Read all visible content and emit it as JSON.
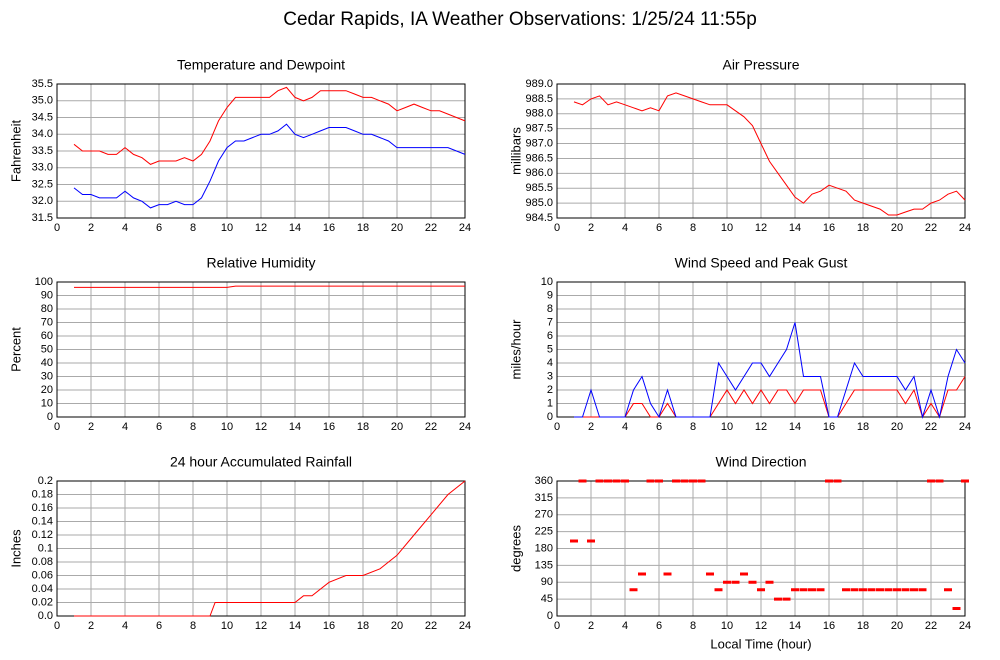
{
  "title": "Cedar Rapids, IA Weather Observations: 1/25/24 11:55p",
  "chart_data": [
    {
      "type": "line",
      "title": "Temperature and Dewpoint",
      "ylabel": "Fahrenheit",
      "x": [
        1,
        1.5,
        2,
        2.5,
        3,
        3.5,
        4,
        4.5,
        5,
        5.5,
        6,
        6.5,
        7,
        7.5,
        8,
        8.5,
        9,
        9.5,
        10,
        10.5,
        11,
        11.5,
        12,
        12.5,
        13,
        13.5,
        14,
        14.5,
        15,
        15.5,
        16,
        16.5,
        17,
        17.5,
        18,
        18.5,
        19,
        19.5,
        20,
        20.5,
        21,
        21.5,
        22,
        22.5,
        23,
        23.5,
        24
      ],
      "series": [
        {
          "name": "Temperature",
          "color": "#ff0000",
          "values": [
            33.7,
            33.5,
            33.5,
            33.5,
            33.4,
            33.4,
            33.6,
            33.4,
            33.3,
            33.1,
            33.2,
            33.2,
            33.2,
            33.3,
            33.2,
            33.4,
            33.8,
            34.4,
            34.8,
            35.1,
            35.1,
            35.1,
            35.1,
            35.1,
            35.3,
            35.4,
            35.1,
            35.0,
            35.1,
            35.3,
            35.3,
            35.3,
            35.3,
            35.2,
            35.1,
            35.1,
            35.0,
            34.9,
            34.7,
            34.8,
            34.9,
            34.8,
            34.7,
            34.7,
            34.6,
            34.5,
            34.4
          ]
        },
        {
          "name": "Dewpoint",
          "color": "#0000ff",
          "values": [
            32.4,
            32.2,
            32.2,
            32.1,
            32.1,
            32.1,
            32.3,
            32.1,
            32.0,
            31.8,
            31.9,
            31.9,
            32.0,
            31.9,
            31.9,
            32.1,
            32.6,
            33.2,
            33.6,
            33.8,
            33.8,
            33.9,
            34.0,
            34.0,
            34.1,
            34.3,
            34.0,
            33.9,
            34.0,
            34.1,
            34.2,
            34.2,
            34.2,
            34.1,
            34.0,
            34.0,
            33.9,
            33.8,
            33.6,
            33.6,
            33.6,
            33.6,
            33.6,
            33.6,
            33.6,
            33.5,
            33.4
          ]
        }
      ],
      "xlim": [
        0,
        24
      ],
      "xticks": [
        0,
        2,
        4,
        6,
        8,
        10,
        12,
        14,
        16,
        18,
        20,
        22,
        24
      ],
      "ylim": [
        31.5,
        35.5
      ],
      "yticks": [
        31.5,
        {
          "value": 32,
          "label": "32.0"
        },
        32.5,
        {
          "value": 33,
          "label": "33.0"
        },
        33.5,
        {
          "value": 34,
          "label": "34.0"
        },
        34.5,
        {
          "value": 35,
          "label": "35.0"
        },
        35.5
      ],
      "grid": true
    },
    {
      "type": "line",
      "title": "Air Pressure",
      "ylabel": "millibars",
      "x": [
        1,
        1.5,
        2,
        2.5,
        3,
        3.5,
        4,
        4.5,
        5,
        5.5,
        6,
        6.5,
        7,
        7.5,
        8,
        8.5,
        9,
        9.5,
        10,
        10.5,
        11,
        11.5,
        12,
        12.5,
        13,
        13.5,
        14,
        14.5,
        15,
        15.5,
        16,
        16.5,
        17,
        17.5,
        18,
        18.5,
        19,
        19.5,
        20,
        20.5,
        21,
        21.5,
        22,
        22.5,
        23,
        23.5,
        24
      ],
      "series": [
        {
          "name": "Pressure",
          "color": "#ff0000",
          "values": [
            988.4,
            988.3,
            988.5,
            988.6,
            988.3,
            988.4,
            988.3,
            988.2,
            988.1,
            988.2,
            988.1,
            988.6,
            988.7,
            988.6,
            988.5,
            988.4,
            988.3,
            988.3,
            988.3,
            988.1,
            987.9,
            987.6,
            987.0,
            986.4,
            986.0,
            985.6,
            985.2,
            985.0,
            985.3,
            985.4,
            985.6,
            985.5,
            985.4,
            985.1,
            985.0,
            984.9,
            984.8,
            984.6,
            984.6,
            984.7,
            984.8,
            984.8,
            985.0,
            985.1,
            985.3,
            985.4,
            985.1
          ]
        }
      ],
      "xlim": [
        0,
        24
      ],
      "xticks": [
        0,
        2,
        4,
        6,
        8,
        10,
        12,
        14,
        16,
        18,
        20,
        22,
        24
      ],
      "ylim": [
        984.5,
        989
      ],
      "yticks": [
        984.5,
        {
          "value": 985,
          "label": "985.0"
        },
        985.5,
        {
          "value": 986,
          "label": "986.0"
        },
        986.5,
        {
          "value": 987,
          "label": "987.0"
        },
        987.5,
        {
          "value": 988,
          "label": "988.0"
        },
        988.5,
        {
          "value": 989,
          "label": "989.0"
        }
      ],
      "grid": true
    },
    {
      "type": "line",
      "title": "Relative Humidity",
      "ylabel": "Percent",
      "x": [
        1,
        2,
        3,
        4,
        5,
        6,
        7,
        8,
        9,
        10,
        10.5,
        11,
        12,
        13,
        14,
        15,
        16,
        17,
        18,
        19,
        20,
        21,
        22,
        23,
        24
      ],
      "series": [
        {
          "name": "Relative Humidity",
          "color": "#ff0000",
          "values": [
            96,
            96,
            96,
            96,
            96,
            96,
            96,
            96,
            96,
            96,
            97,
            97,
            97,
            97,
            97,
            97,
            97,
            97,
            97,
            97,
            97,
            97,
            97,
            97,
            97
          ]
        }
      ],
      "xlim": [
        0,
        24
      ],
      "xticks": [
        0,
        2,
        4,
        6,
        8,
        10,
        12,
        14,
        16,
        18,
        20,
        22,
        24
      ],
      "ylim": [
        0,
        100
      ],
      "yticks": [
        0,
        10,
        20,
        30,
        40,
        50,
        60,
        70,
        80,
        90,
        100
      ],
      "grid": true
    },
    {
      "type": "line",
      "title": "Wind Speed and Peak Gust",
      "ylabel": "miles/hour",
      "x": [
        1,
        1.5,
        2,
        2.5,
        3,
        3.5,
        4,
        4.5,
        5,
        5.5,
        6,
        6.5,
        7,
        7.5,
        8,
        8.5,
        9,
        9.5,
        10,
        10.5,
        11,
        11.5,
        12,
        12.5,
        13,
        13.5,
        14,
        14.5,
        15,
        15.5,
        16,
        16.5,
        17,
        17.5,
        18,
        18.5,
        19,
        19.5,
        20,
        20.5,
        21,
        21.5,
        22,
        22.5,
        23,
        23.5,
        24
      ],
      "series": [
        {
          "name": "Wind Speed",
          "color": "#ff0000",
          "values": [
            0,
            0,
            0,
            0,
            0,
            0,
            0,
            1,
            1,
            0,
            0,
            1,
            0,
            0,
            0,
            0,
            0,
            1,
            2,
            1,
            2,
            1,
            2,
            1,
            2,
            2,
            1,
            2,
            2,
            2,
            0,
            0,
            1,
            2,
            2,
            2,
            2,
            2,
            2,
            1,
            2,
            0,
            1,
            0,
            2,
            2,
            3
          ]
        },
        {
          "name": "Peak Gust",
          "color": "#0000ff",
          "values": [
            0,
            0,
            2,
            0,
            0,
            0,
            0,
            2,
            3,
            1,
            0,
            2,
            0,
            0,
            0,
            0,
            0,
            4,
            3,
            2,
            3,
            4,
            4,
            3,
            4,
            5,
            7,
            3,
            3,
            3,
            0,
            0,
            2,
            4,
            3,
            3,
            3,
            3,
            3,
            2,
            3,
            0,
            2,
            0,
            3,
            5,
            4
          ]
        }
      ],
      "xlim": [
        0,
        24
      ],
      "xticks": [
        0,
        2,
        4,
        6,
        8,
        10,
        12,
        14,
        16,
        18,
        20,
        22,
        24
      ],
      "ylim": [
        0,
        10
      ],
      "yticks": [
        0,
        1,
        2,
        3,
        4,
        5,
        6,
        7,
        8,
        9,
        10
      ],
      "grid": true
    },
    {
      "type": "line",
      "title": "24 hour Accumulated Rainfall",
      "ylabel": "Inches",
      "x": [
        1,
        2,
        3,
        4,
        5,
        6,
        7,
        8,
        9,
        9.3,
        10,
        11,
        12,
        13,
        14,
        14.5,
        15,
        16,
        17,
        18,
        19,
        20,
        21,
        22,
        23,
        24
      ],
      "series": [
        {
          "name": "Rainfall",
          "color": "#ff0000",
          "values": [
            0,
            0,
            0,
            0,
            0,
            0,
            0,
            0,
            0,
            0.02,
            0.02,
            0.02,
            0.02,
            0.02,
            0.02,
            0.03,
            0.03,
            0.05,
            0.06,
            0.06,
            0.07,
            0.09,
            0.12,
            0.15,
            0.18,
            0.2
          ]
        }
      ],
      "xlim": [
        0,
        24
      ],
      "xticks": [
        0,
        2,
        4,
        6,
        8,
        10,
        12,
        14,
        16,
        18,
        20,
        22,
        24
      ],
      "ylim": [
        0,
        0.2
      ],
      "yticks": [
        {
          "value": 0,
          "label": "0.0"
        },
        0.02,
        0.04,
        0.06,
        0.08,
        0.1,
        0.12,
        0.14,
        0.16,
        0.18,
        0.2
      ],
      "grid": true
    },
    {
      "type": "scatter",
      "title": "Wind Direction",
      "ylabel": "degrees",
      "xlabel": "Local Time (hour)",
      "x": [
        1,
        1.5,
        2,
        2.5,
        3,
        3.5,
        4,
        4.5,
        5,
        5.5,
        6,
        6.5,
        7,
        7.5,
        8,
        8.5,
        9,
        9.5,
        10,
        10.5,
        11,
        11.5,
        12,
        12.5,
        13,
        13.5,
        14,
        14.5,
        15,
        15.5,
        16,
        16.5,
        17,
        17.5,
        18,
        18.5,
        19,
        19.5,
        20,
        20.5,
        21,
        21.5,
        22,
        22.5,
        23,
        23.5,
        24
      ],
      "series": [
        {
          "name": "Wind Direction",
          "color": "#ff0000",
          "values": [
            200,
            360,
            200,
            360,
            360,
            360,
            360,
            70,
            112,
            360,
            360,
            112,
            360,
            360,
            360,
            360,
            112,
            70,
            90,
            90,
            112,
            90,
            70,
            90,
            45,
            45,
            70,
            70,
            70,
            70,
            360,
            360,
            70,
            70,
            70,
            70,
            70,
            70,
            70,
            70,
            70,
            70,
            360,
            360,
            70,
            20,
            360
          ]
        }
      ],
      "xlim": [
        0,
        24
      ],
      "xticks": [
        0,
        2,
        4,
        6,
        8,
        10,
        12,
        14,
        16,
        18,
        20,
        22,
        24
      ],
      "ylim": [
        0,
        360
      ],
      "yticks": [
        0,
        45,
        90,
        135,
        180,
        225,
        270,
        315,
        360
      ],
      "grid": true
    }
  ]
}
